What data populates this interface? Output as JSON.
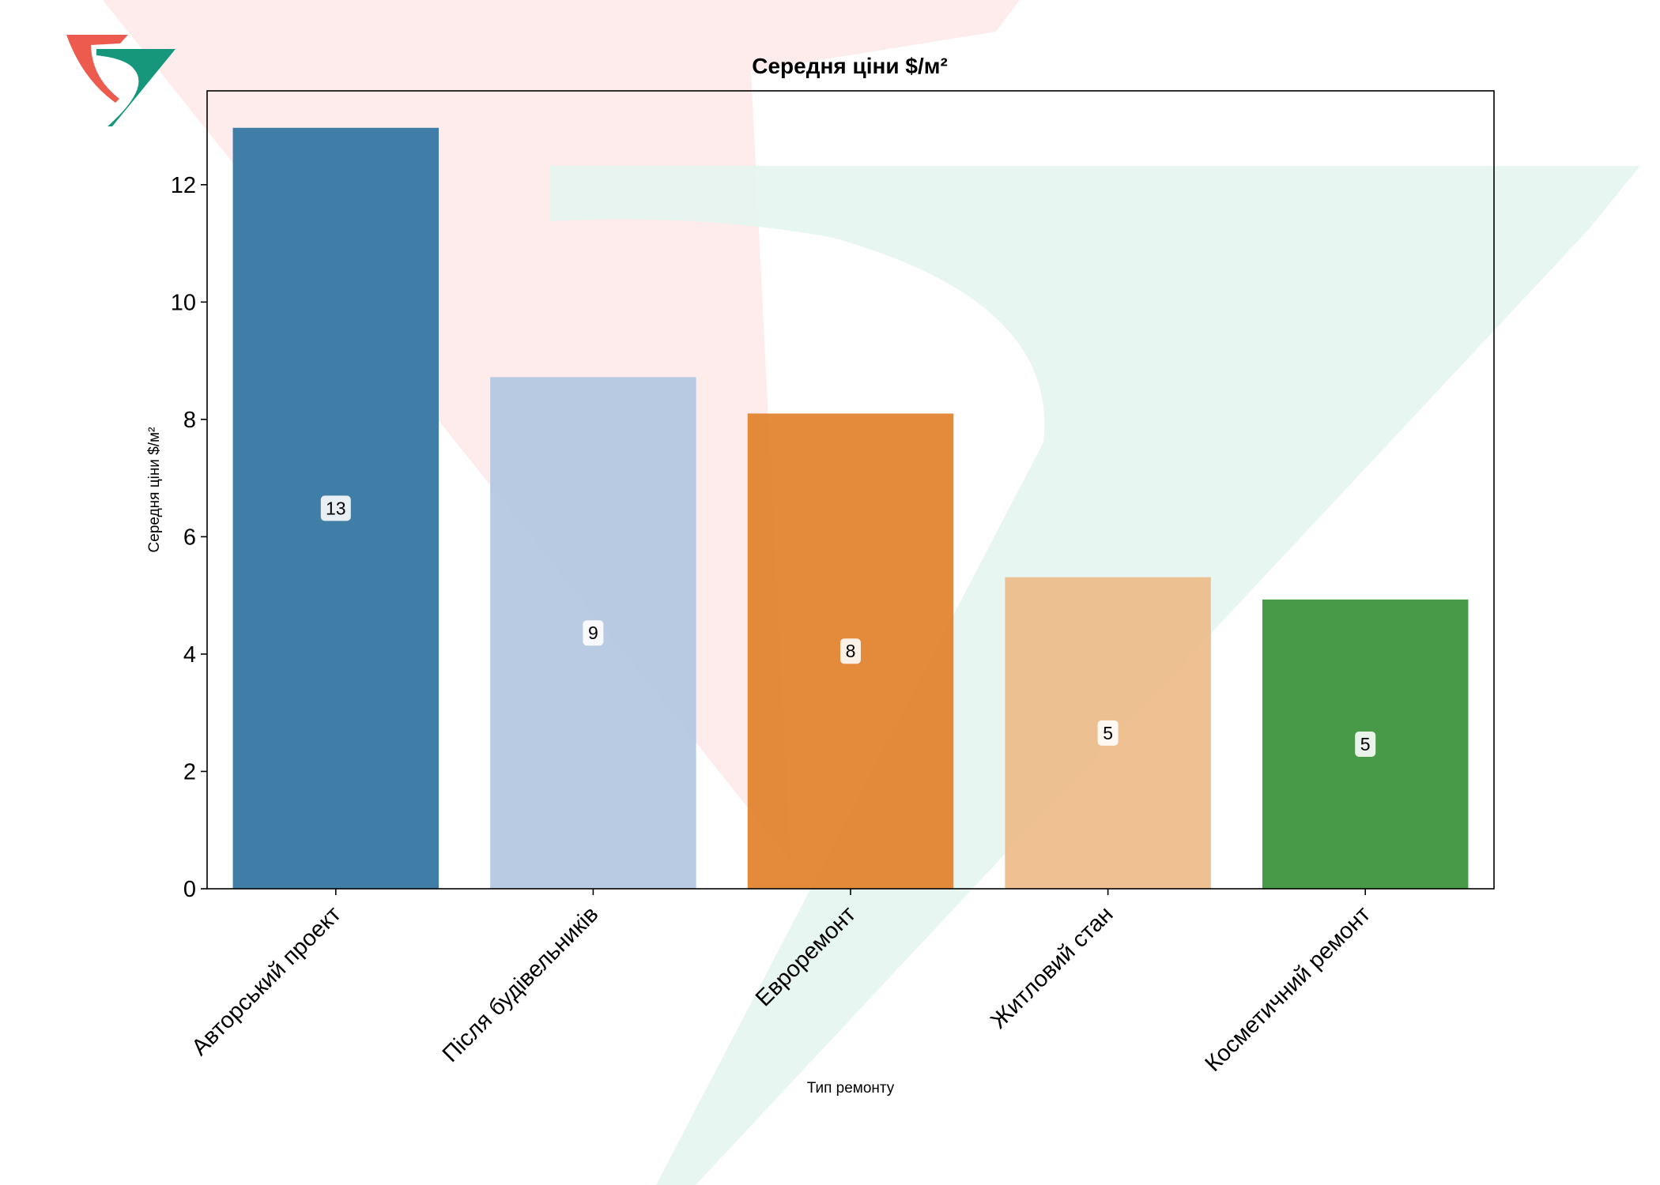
{
  "chart_data": {
    "type": "bar",
    "title": "Середня ціни $/м²",
    "xlabel": "Тип ремонту",
    "ylabel": "Середня ціни $/м²",
    "categories": [
      "Авторський проект",
      "Після будівельників",
      "Евроремонт",
      "Житловий стан",
      "Косметичний ремонт"
    ],
    "values": [
      12.97,
      8.72,
      8.1,
      5.31,
      4.93
    ],
    "value_labels": [
      "13",
      "9",
      "8",
      "5",
      "5"
    ],
    "bar_colors": [
      "#3274a1",
      "#b3c7e1",
      "#e1812c",
      "#edbb8a",
      "#3a923a"
    ],
    "ylim": [
      0,
      13.6
    ],
    "yticks": [
      0,
      2,
      4,
      6,
      8,
      10,
      12
    ],
    "grid": false,
    "legend": "none"
  },
  "logo": {
    "name": "logo-icon",
    "colors": [
      "#ec5b4d",
      "#16977c"
    ]
  },
  "watermark": {
    "colors": [
      "#fde9e7",
      "#e6f5f0"
    ]
  }
}
